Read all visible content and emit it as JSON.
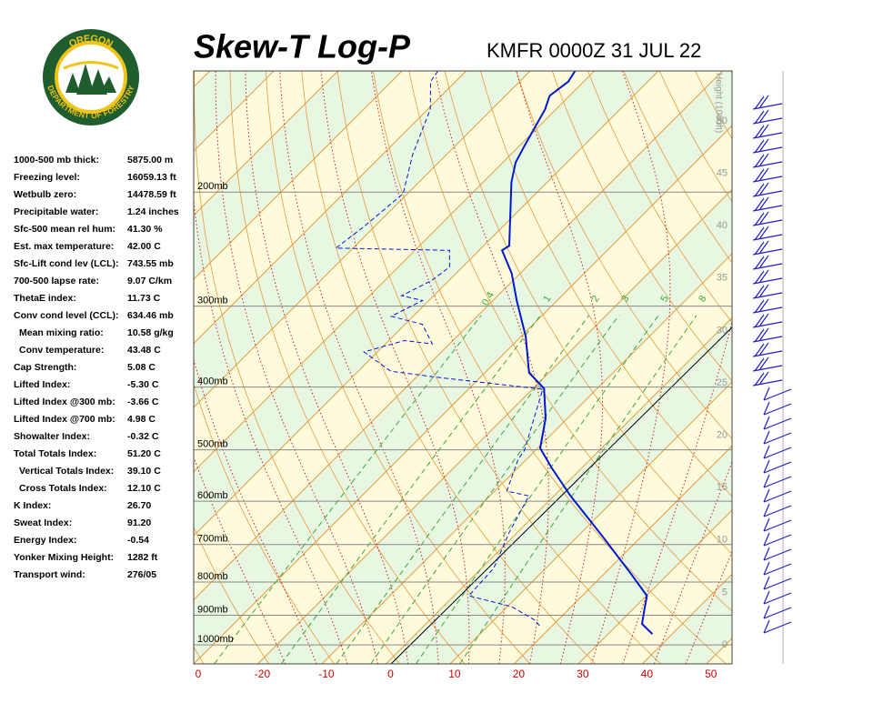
{
  "logo": {
    "top": "OREGON",
    "bottom": "DEPARTMENT OF FORESTRY"
  },
  "title": "Skew-T Log-P",
  "station": "KMFR 0000Z 31 JUL 22",
  "indices": [
    {
      "label": "1000-500 mb thick:",
      "value": "5875.00 m"
    },
    {
      "label": "Freezing level:",
      "value": "16059.13 ft"
    },
    {
      "label": "Wetbulb zero:",
      "value": "14478.59 ft"
    },
    {
      "label": "Precipitable water:",
      "value": "1.24 inches"
    },
    {
      "label": "Sfc-500 mean rel hum:",
      "value": "41.30 %"
    },
    {
      "label": "Est. max temperature:",
      "value": "42.00 C"
    },
    {
      "label": "Sfc-Lift cond lev (LCL):",
      "value": "743.55 mb"
    },
    {
      "label": "700-500 lapse rate:",
      "value": "9.07 C/km"
    },
    {
      "label": "ThetaE index:",
      "value": "11.73 C"
    },
    {
      "label": "Conv cond level (CCL):",
      "value": "634.46 mb"
    },
    {
      "label": "Mean mixing ratio:",
      "value": "10.58 g/kg",
      "indent": true
    },
    {
      "label": "Conv temperature:",
      "value": "43.48 C",
      "indent": true
    },
    {
      "label": "Cap Strength:",
      "value": "5.08 C"
    },
    {
      "label": "Lifted Index:",
      "value": "-5.30 C"
    },
    {
      "label": "Lifted Index @300 mb:",
      "value": "-3.66 C"
    },
    {
      "label": "Lifted Index @700 mb:",
      "value": "4.98 C"
    },
    {
      "label": "Showalter Index:",
      "value": "-0.32 C"
    },
    {
      "label": "Total Totals Index:",
      "value": "51.20 C"
    },
    {
      "label": "Vertical Totals Index:",
      "value": "39.10 C",
      "indent": true
    },
    {
      "label": "Cross Totals Index:",
      "value": "12.10 C",
      "indent": true
    },
    {
      "label": "K Index:",
      "value": "26.70"
    },
    {
      "label": "Sweat Index:",
      "value": "91.20"
    },
    {
      "label": "Energy Index:",
      "value": "-0.54"
    },
    {
      "label": "Yonker Mixing Height:",
      "value": "1282 ft"
    },
    {
      "label": "Transport wind:",
      "value": "276/05"
    }
  ],
  "chart_data": {
    "type": "skew-t",
    "xlim": [
      -30,
      54
    ],
    "ylim": [
      1070,
      130
    ],
    "log_y": true,
    "xticks": [
      {
        "value": -30,
        "label": "0"
      },
      -20,
      -10,
      0,
      10,
      20,
      30,
      40,
      50
    ],
    "yticks": [
      {
        "value": 200,
        "label": "200mb"
      },
      {
        "value": 300,
        "label": "300mb"
      },
      {
        "value": 400,
        "label": "400mb"
      },
      {
        "value": 500,
        "label": "500mb"
      },
      {
        "value": 600,
        "label": "600mb"
      },
      {
        "value": 700,
        "label": "700mb"
      },
      {
        "value": 800,
        "label": "800mb"
      },
      {
        "value": 900,
        "label": "900mb"
      },
      {
        "value": 1000,
        "label": "1000mb"
      }
    ],
    "height_label": "Height (1000ft)",
    "height_ticks": [
      0,
      5,
      10,
      15,
      20,
      25,
      30,
      35,
      40,
      45,
      50
    ],
    "mixing_ratios": [
      0.4,
      1,
      2,
      3,
      5,
      8
    ],
    "temperature": {
      "color": "#0018d0",
      "pressure": [
        962,
        928,
        876,
        840,
        775,
        681,
        589,
        534,
        497,
        447,
        402,
        380,
        334,
        294,
        267,
        246,
        242,
        193,
        180,
        169,
        149,
        142,
        135,
        130
      ],
      "values": [
        36.9,
        33.7,
        31.6,
        30.1,
        24.0,
        14.0,
        2.6,
        -4.6,
        -9.6,
        -13.4,
        -18.3,
        -23.1,
        -29.3,
        -36.3,
        -41.3,
        -46.4,
        -46.0,
        -55.6,
        -58.0,
        -59.3,
        -61.7,
        -63.1,
        -62.4,
        -63.0
      ]
    },
    "dewpoint": {
      "color": "#0018d0",
      "pressure": [
        934,
        916,
        873,
        840,
        762,
        670,
        589,
        579,
        517,
        501,
        403,
        387,
        378,
        353,
        339,
        343,
        320,
        311,
        294,
        289,
        274,
        261,
        246,
        244,
        227,
        201,
        175,
        149,
        135,
        130
      ],
      "values": [
        18.0,
        16.4,
        10.7,
        2.3,
        1.9,
        -1.3,
        -3.9,
        -8.1,
        -11.3,
        -11.7,
        -18.4,
        -36.0,
        -44.9,
        -52.1,
        -47.6,
        -42.7,
        -47.3,
        -53.4,
        -51.0,
        -55.0,
        -52.7,
        -52.0,
        -54.6,
        -72.7,
        -71.7,
        -70.7,
        -75.3,
        -79.6,
        -83.9,
        -84.4
      ]
    }
  }
}
